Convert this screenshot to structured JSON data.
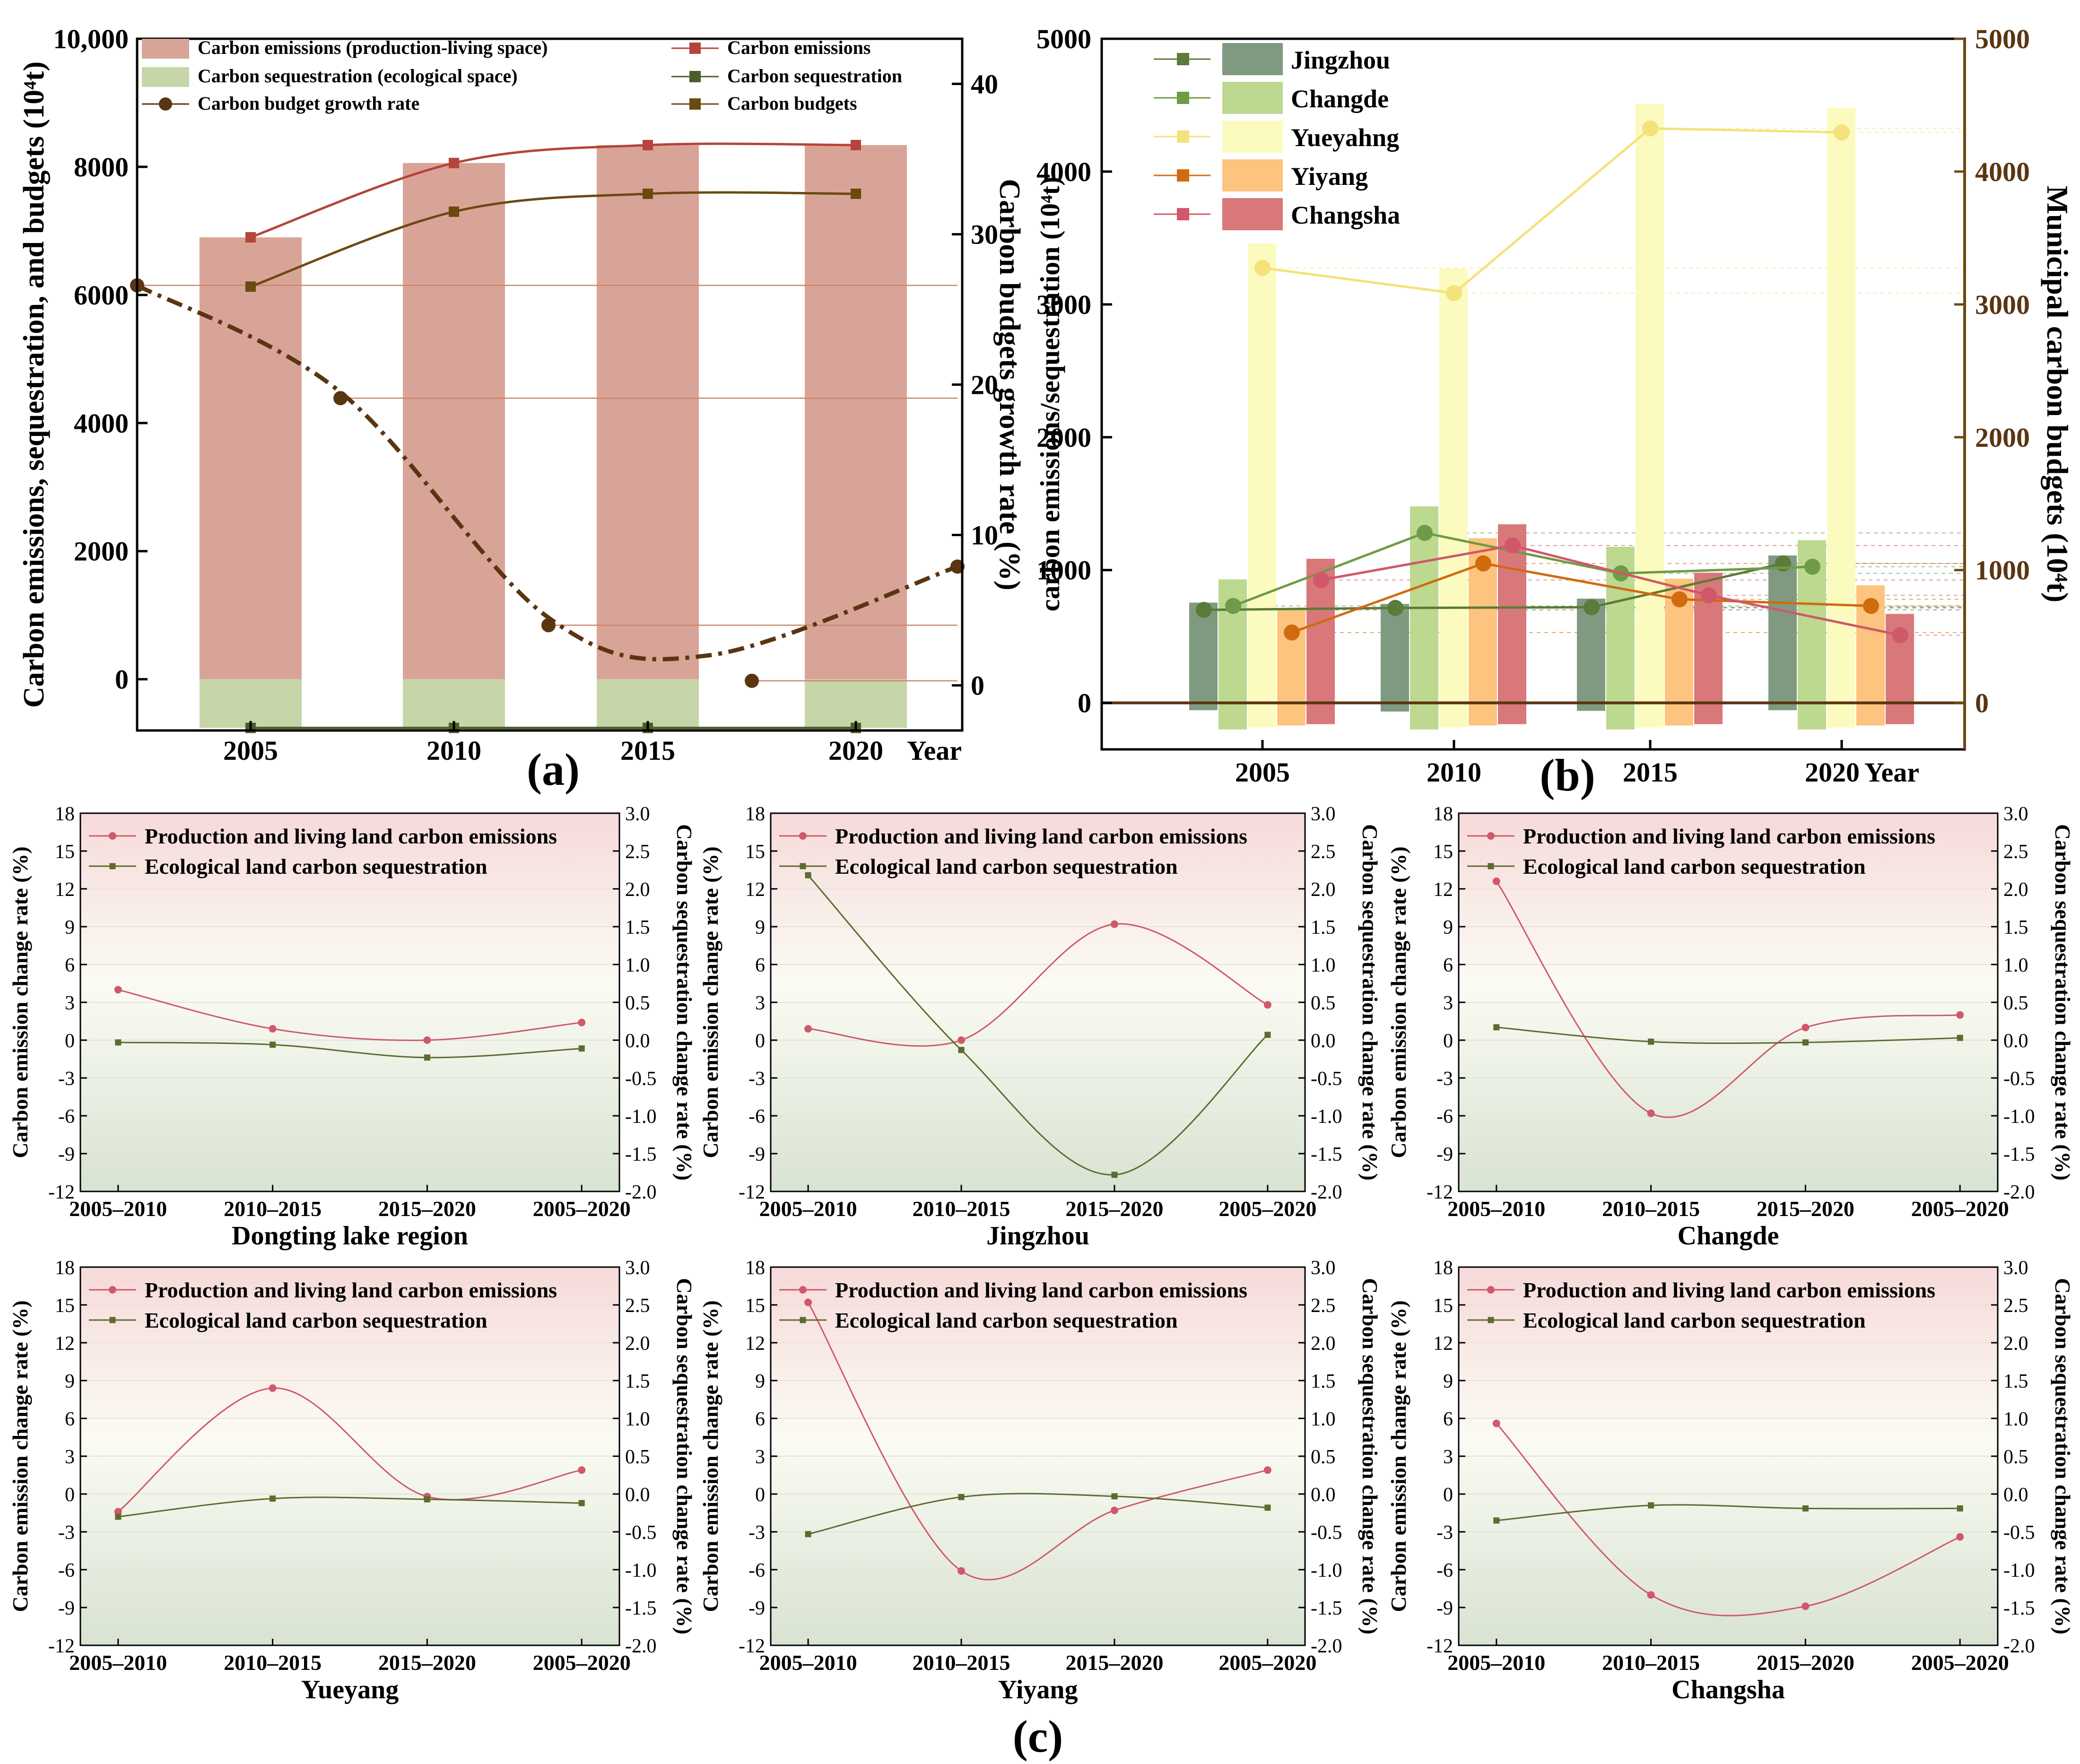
{
  "figure": {
    "panel_a_label": "(a)",
    "panel_b_label": "(b)",
    "panel_c_label": "(c)"
  },
  "colors": {
    "emis_bar": "#d9a498",
    "seq_bar": "#c7d6a8",
    "emis_line": "#b5443a",
    "seq_line": "#4b5e2a",
    "budget_line": "#6b4a12",
    "growth": "#5a3512",
    "jingzhou": "#7f9a80",
    "changde": "#bcd98f",
    "yueyang": "#fbfbbf",
    "yiyang": "#fcc47e",
    "changsha": "#d8787a",
    "jingzhou_line": "#5c7a3a",
    "changde_line": "#6f9a46",
    "yueyang_line": "#f4e27a",
    "yiyang_line": "#d06b10",
    "changsha_line": "#d0586a",
    "c_emis": "#d0586a",
    "c_seq": "#5c6b2e"
  },
  "chart_data": [
    {
      "id": "a",
      "type": "bar",
      "categories": [
        "2005",
        "2010",
        "2015",
        "2020"
      ],
      "x_suffix": "Year",
      "ylabel": "Carbon emissions, sequestration, and budgets (10⁴t)",
      "y2label": "Carbon budgets growth rate (%)",
      "ylim": [
        -800,
        10000
      ],
      "yticks": [
        "0",
        "2000",
        "4000",
        "6000",
        "8000",
        "10,000"
      ],
      "y2lim": [
        -3,
        43
      ],
      "y2ticks": [
        "0",
        "10",
        "20",
        "30",
        "40"
      ],
      "series": [
        {
          "name": "Carbon emissions (production-living space)",
          "kind": "bar",
          "values": [
            6900,
            8060,
            8340,
            8340
          ]
        },
        {
          "name": "Carbon sequestration (ecological space)",
          "kind": "bar",
          "values": [
            -760,
            -760,
            -760,
            -760
          ]
        },
        {
          "name": "Carbon emissions",
          "kind": "line",
          "values": [
            6900,
            8060,
            8340,
            8340
          ]
        },
        {
          "name": "Carbon sequestration",
          "kind": "line",
          "values": [
            -760,
            -760,
            -760,
            -760
          ]
        },
        {
          "name": "Carbon budgets",
          "kind": "line",
          "values": [
            6130,
            7300,
            7580,
            7580
          ]
        },
        {
          "name": "Carbon budget growth rate",
          "kind": "scatter",
          "x": [
            2002,
            2007,
            2012,
            2017,
            2022
          ],
          "values": [
            26.6,
            19.1,
            4.0,
            0.3,
            7.9
          ]
        }
      ]
    },
    {
      "id": "b",
      "type": "bar",
      "categories": [
        "2005",
        "2010",
        "2015",
        "2020"
      ],
      "x_suffix": "Year",
      "ylabel": "carbon emissions/sequestration (10⁴t)",
      "y2label": "Municipal carbon budgets (10⁴t)",
      "ylim": [
        -350,
        5000
      ],
      "yticks": [
        "0",
        "1000",
        "2000",
        "3000",
        "4000",
        "5000"
      ],
      "legend": [
        "Jingzhou",
        "Changde",
        "Yueyahng",
        "Yiyang",
        "Changsha"
      ],
      "series": [
        {
          "name": "Jingzhou",
          "emissions": [
            755,
            745,
            785,
            1110
          ],
          "sequestration": [
            -55,
            -65,
            -60,
            -55
          ],
          "budgets": [
            700,
            715,
            720,
            1050
          ]
        },
        {
          "name": "Changde",
          "emissions": [
            930,
            1480,
            1175,
            1225
          ],
          "sequestration": [
            -200,
            -200,
            -200,
            -200
          ],
          "budgets": [
            730,
            1280,
            975,
            1025
          ]
        },
        {
          "name": "Yueyahng",
          "emissions": [
            3460,
            3270,
            4510,
            4480
          ],
          "sequestration": [
            -185,
            -185,
            -185,
            -185
          ],
          "budgets": [
            3275,
            3085,
            4325,
            4295
          ]
        },
        {
          "name": "Yiyang",
          "emissions": [
            705,
            1240,
            935,
            885
          ],
          "sequestration": [
            -170,
            -170,
            -170,
            -170
          ],
          "budgets": [
            530,
            1050,
            780,
            730
          ]
        },
        {
          "name": "Changsha",
          "emissions": [
            1085,
            1345,
            980,
            670
          ],
          "sequestration": [
            -160,
            -160,
            -160,
            -160
          ],
          "budgets": [
            925,
            1185,
            810,
            510
          ]
        }
      ]
    },
    {
      "id": "c-dongting",
      "type": "line",
      "title": "Dongting lake region",
      "categories": [
        "2005–2010",
        "2010–2015",
        "2015–2020",
        "2005–2020"
      ],
      "ylabel": "Carbon emission change rate (%)",
      "y2label": "Carbon sequestration change rate (%)",
      "ylim": [
        -12,
        18
      ],
      "y2lim": [
        -2.0,
        3.0
      ],
      "yticks": [
        "-12",
        "-9",
        "-6",
        "-3",
        "0",
        "3",
        "6",
        "9",
        "12",
        "15",
        "18"
      ],
      "y2ticks": [
        "-2.0",
        "-1.5",
        "-1.0",
        "-0.5",
        "0.0",
        "0.5",
        "1.0",
        "1.5",
        "2.0",
        "2.5",
        "3.0"
      ],
      "series": [
        {
          "name": "Production and living land carbon emissions",
          "values": [
            4.0,
            0.9,
            0.0,
            1.4
          ]
        },
        {
          "name": "Ecological land carbon sequestration",
          "values": [
            -0.03,
            -0.06,
            -0.23,
            -0.11
          ]
        }
      ]
    },
    {
      "id": "c-jingzhou",
      "type": "line",
      "title": "Jingzhou",
      "categories": [
        "2005–2010",
        "2010–2015",
        "2015–2020",
        "2005–2020"
      ],
      "ylabel": "Carbon emission change rate (%)",
      "y2label": "Carbon sequestration change rate (%)",
      "ylim": [
        -12,
        18
      ],
      "y2lim": [
        -2.0,
        3.0
      ],
      "yticks": [
        "-12",
        "-9",
        "-6",
        "-3",
        "0",
        "3",
        "6",
        "9",
        "12",
        "15",
        "18"
      ],
      "y2ticks": [
        "-2.0",
        "-1.5",
        "-1.0",
        "-0.5",
        "0.0",
        "0.5",
        "1.0",
        "1.5",
        "2.0",
        "2.5",
        "3.0"
      ],
      "series": [
        {
          "name": "Production and living land carbon emissions",
          "values": [
            0.9,
            0.0,
            9.2,
            2.8
          ]
        },
        {
          "name": "Ecological land carbon sequestration",
          "values": [
            2.18,
            -0.13,
            -1.78,
            0.07
          ]
        }
      ]
    },
    {
      "id": "c-changde",
      "type": "line",
      "title": "Changde",
      "categories": [
        "2005–2010",
        "2010–2015",
        "2015–2020",
        "2005–2020"
      ],
      "ylabel": "Carbon emission change rate (%)",
      "y2label": "Carbon sequestration change rate (%)",
      "ylim": [
        -12,
        18
      ],
      "y2lim": [
        -2.0,
        3.0
      ],
      "yticks": [
        "-12",
        "-9",
        "-6",
        "-3",
        "0",
        "3",
        "6",
        "9",
        "12",
        "15",
        "18"
      ],
      "y2ticks": [
        "-2.0",
        "-1.5",
        "-1.0",
        "-0.5",
        "0.0",
        "0.5",
        "1.0",
        "1.5",
        "2.0",
        "2.5",
        "3.0"
      ],
      "series": [
        {
          "name": "Production and living land carbon emissions",
          "values": [
            12.6,
            -5.8,
            1.0,
            2.0
          ]
        },
        {
          "name": "Ecological land carbon sequestration",
          "values": [
            0.17,
            -0.02,
            -0.03,
            0.03
          ]
        }
      ]
    },
    {
      "id": "c-yueyang",
      "type": "line",
      "title": "Yueyang",
      "categories": [
        "2005–2010",
        "2010–2015",
        "2015–2020",
        "2005–2020"
      ],
      "ylabel": "Carbon emission change rate (%)",
      "y2label": "Carbon sequestration change rate (%)",
      "ylim": [
        -12,
        18
      ],
      "y2lim": [
        -2.0,
        3.0
      ],
      "yticks": [
        "-12",
        "-9",
        "-6",
        "-3",
        "0",
        "3",
        "6",
        "9",
        "12",
        "15",
        "18"
      ],
      "y2ticks": [
        "-2.0",
        "-1.5",
        "-1.0",
        "-0.5",
        "0.0",
        "0.5",
        "1.0",
        "1.5",
        "2.0",
        "2.5",
        "3.0"
      ],
      "series": [
        {
          "name": "Production and living land carbon emissions",
          "values": [
            -1.4,
            8.4,
            -0.2,
            1.9
          ]
        },
        {
          "name": "Ecological land carbon sequestration",
          "values": [
            -0.3,
            -0.06,
            -0.07,
            -0.12
          ]
        }
      ]
    },
    {
      "id": "c-yiyang",
      "type": "line",
      "title": "Yiyang",
      "categories": [
        "2005–2010",
        "2010–2015",
        "2015–2020",
        "2005–2020"
      ],
      "ylabel": "Carbon emission change rate (%)",
      "y2label": "Carbon sequestration change rate (%)",
      "ylim": [
        -12,
        18
      ],
      "y2lim": [
        -2.0,
        3.0
      ],
      "yticks": [
        "-12",
        "-9",
        "-6",
        "-3",
        "0",
        "3",
        "6",
        "9",
        "12",
        "15",
        "18"
      ],
      "y2ticks": [
        "-2.0",
        "-1.5",
        "-1.0",
        "-0.5",
        "0.0",
        "0.5",
        "1.0",
        "1.5",
        "2.0",
        "2.5",
        "3.0"
      ],
      "series": [
        {
          "name": "Production and living land carbon emissions",
          "values": [
            15.2,
            -6.1,
            -1.3,
            1.9
          ]
        },
        {
          "name": "Ecological land carbon sequestration",
          "values": [
            -0.53,
            -0.04,
            -0.03,
            -0.18
          ]
        }
      ]
    },
    {
      "id": "c-changsha",
      "type": "line",
      "title": "Changsha",
      "categories": [
        "2005–2010",
        "2010–2015",
        "2015–2020",
        "2005–2020"
      ],
      "ylabel": "Carbon emission change rate (%)",
      "y2label": "Carbon sequestration change rate (%)",
      "ylim": [
        -12,
        18
      ],
      "y2lim": [
        -2.0,
        3.0
      ],
      "yticks": [
        "-12",
        "-9",
        "-6",
        "-3",
        "0",
        "3",
        "6",
        "9",
        "12",
        "15",
        "18"
      ],
      "y2ticks": [
        "-2.0",
        "-1.5",
        "-1.0",
        "-0.5",
        "0.0",
        "0.5",
        "1.0",
        "1.5",
        "2.0",
        "2.5",
        "3.0"
      ],
      "series": [
        {
          "name": "Production and living land carbon emissions",
          "values": [
            5.6,
            -8.0,
            -8.9,
            -3.4
          ]
        },
        {
          "name": "Ecological land carbon sequestration",
          "values": [
            -0.35,
            -0.15,
            -0.19,
            -0.19
          ]
        }
      ]
    }
  ]
}
